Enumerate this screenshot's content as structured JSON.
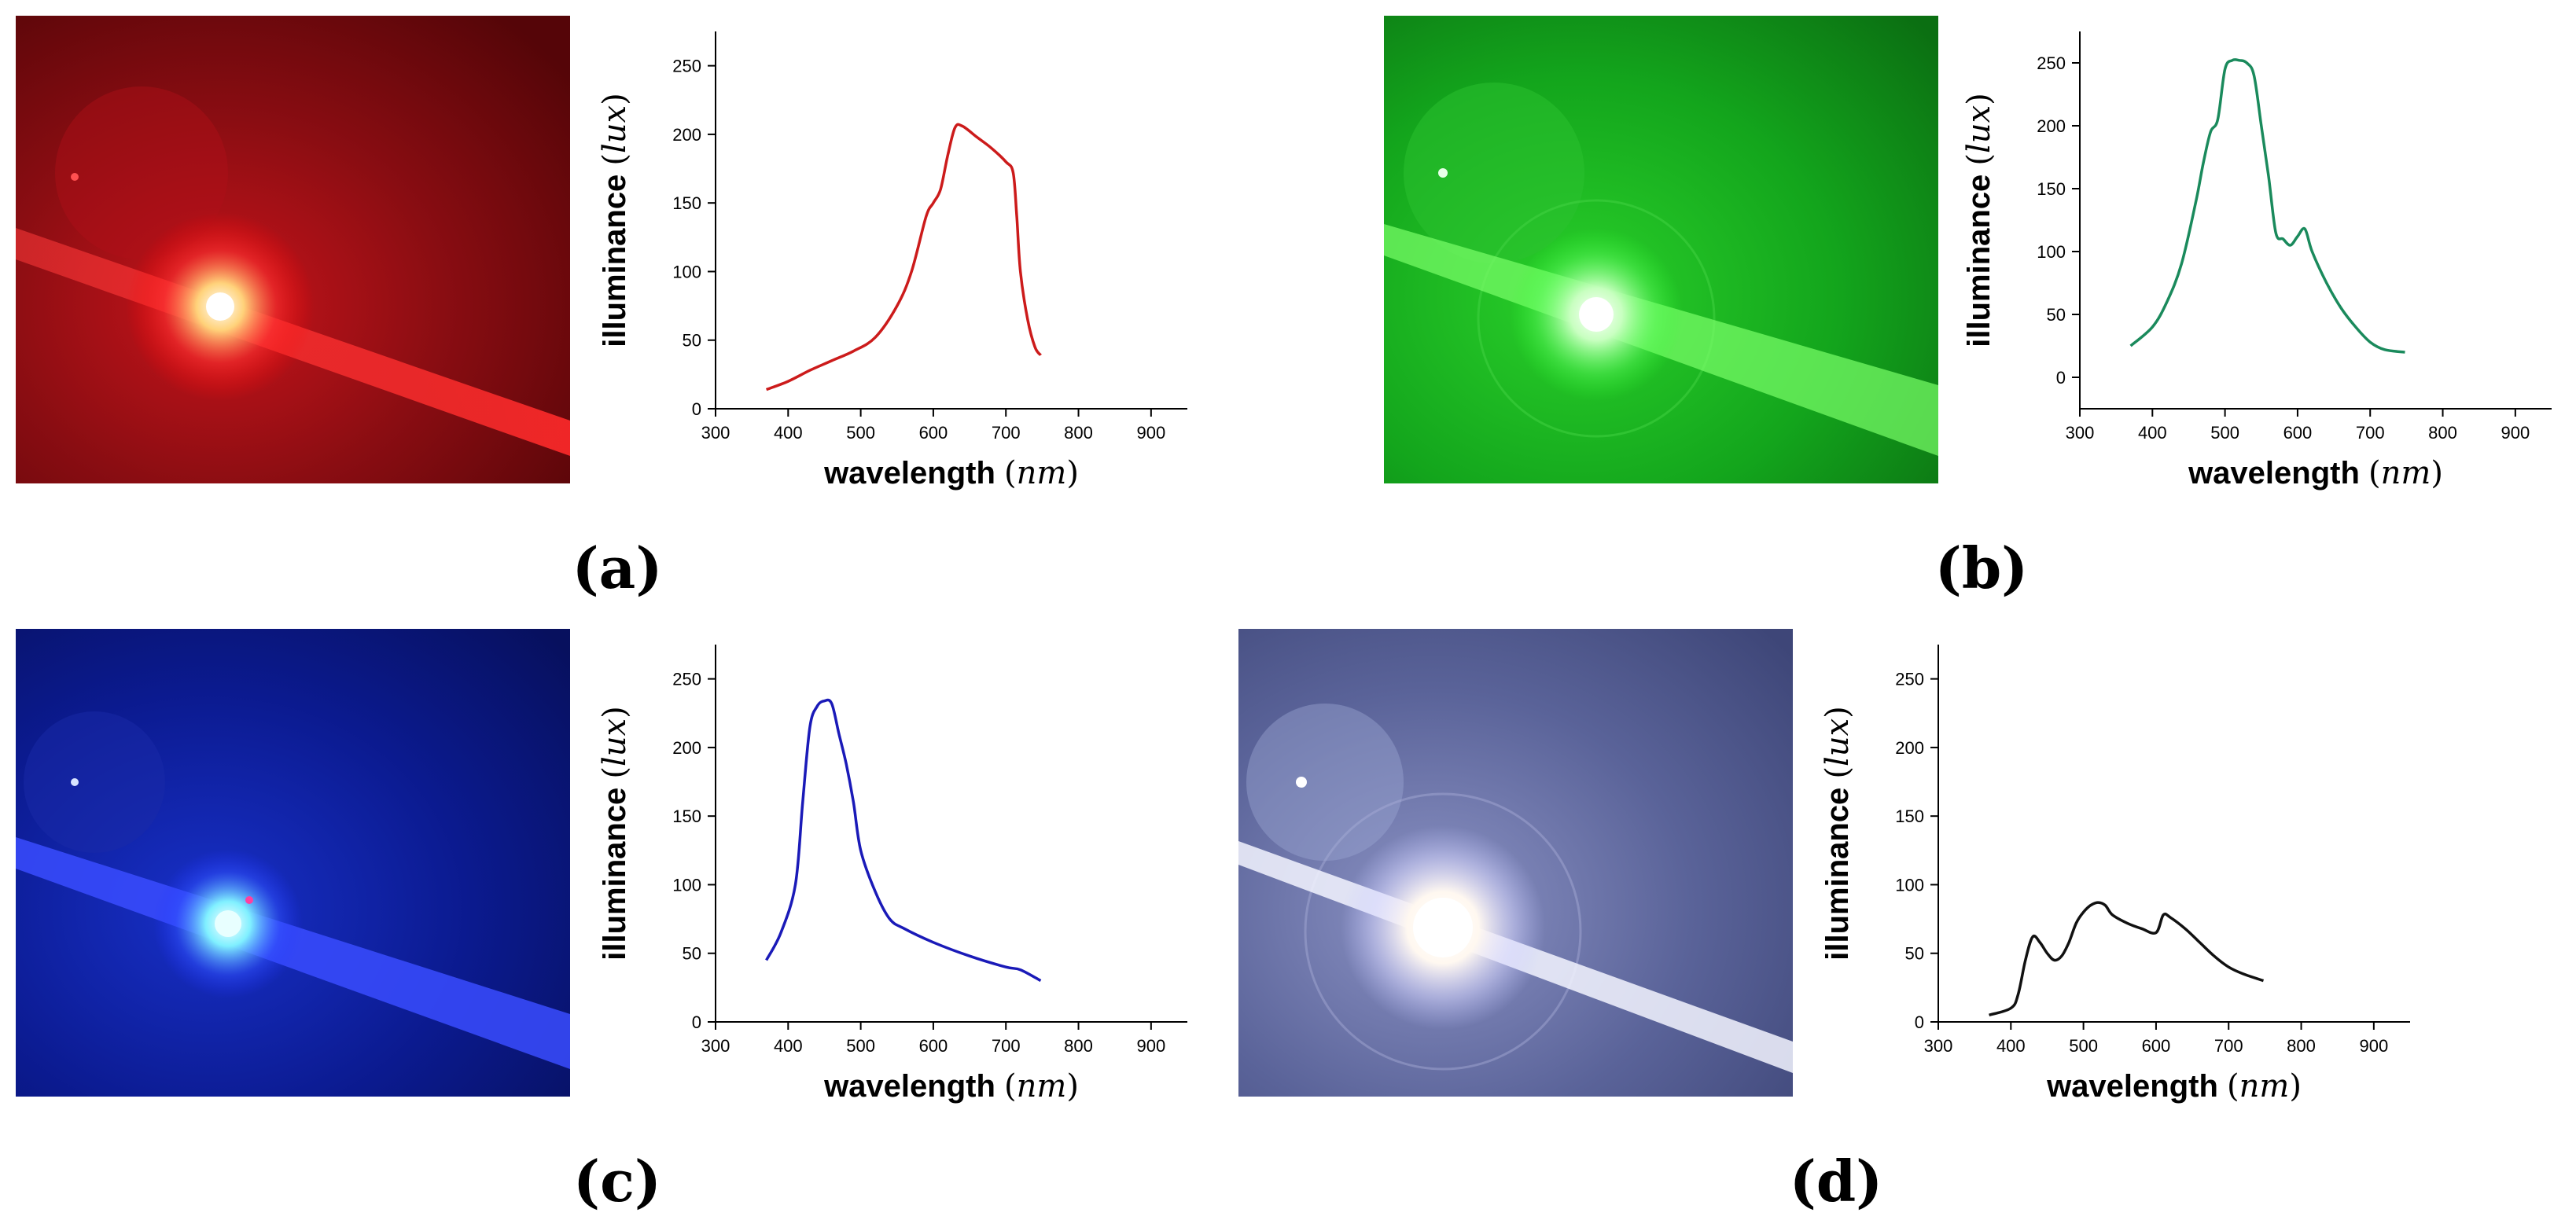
{
  "figure": {
    "panels": [
      {
        "id": "a",
        "caption": "(a)",
        "photo": {
          "theme": "red",
          "background": "#8a0d12",
          "beam": "#ff2a2a"
        }
      },
      {
        "id": "b",
        "caption": "(b)",
        "photo": {
          "theme": "green",
          "background": "#13a51c",
          "beam": "#73ff6a"
        }
      },
      {
        "id": "c",
        "caption": "(c)",
        "photo": {
          "theme": "blue",
          "background": "#0b1a8f",
          "beam": "#3246ff"
        }
      },
      {
        "id": "d",
        "caption": "(d)",
        "photo": {
          "theme": "white",
          "background": "#4c568d",
          "beam": "#f3f4ff"
        }
      }
    ]
  },
  "chart_data": [
    {
      "type": "line",
      "panel": "a",
      "xlabel_main": "wavelength",
      "xlabel_unit": "nm",
      "ylabel_main": "illuminance",
      "ylabel_unit": "lux",
      "xlim": [
        300,
        950
      ],
      "ylim": [
        0,
        275
      ],
      "x_ticks": [
        300,
        400,
        500,
        600,
        700,
        800,
        900
      ],
      "y_ticks": [
        0,
        50,
        100,
        150,
        200,
        250
      ],
      "color": "#cc1b1b",
      "series": [
        {
          "x": [
            370,
            400,
            430,
            460,
            490,
            520,
            550,
            570,
            590,
            600,
            610,
            620,
            630,
            640,
            660,
            680,
            700,
            710,
            715,
            720,
            730,
            740,
            748
          ],
          "y": [
            14,
            20,
            28,
            35,
            42,
            52,
            75,
            100,
            140,
            150,
            160,
            185,
            205,
            206,
            198,
            190,
            180,
            172,
            140,
            100,
            65,
            45,
            39
          ]
        }
      ]
    },
    {
      "type": "line",
      "panel": "b",
      "xlabel_main": "wavelength",
      "xlabel_unit": "nm",
      "ylabel_main": "illuminance",
      "ylabel_unit": "lux",
      "xlim": [
        300,
        950
      ],
      "ylim": [
        -25,
        275
      ],
      "x_ticks": [
        300,
        400,
        500,
        600,
        700,
        800,
        900
      ],
      "y_ticks": [
        0,
        50,
        100,
        150,
        200,
        250
      ],
      "color": "#1a8a5c",
      "series": [
        {
          "x": [
            370,
            400,
            420,
            440,
            460,
            470,
            480,
            490,
            500,
            510,
            520,
            530,
            540,
            550,
            560,
            570,
            580,
            590,
            600,
            610,
            620,
            640,
            660,
            680,
            700,
            720,
            748
          ],
          "y": [
            25,
            40,
            60,
            90,
            140,
            170,
            195,
            205,
            245,
            252,
            252,
            250,
            240,
            200,
            160,
            115,
            110,
            105,
            112,
            118,
            100,
            75,
            55,
            40,
            28,
            22,
            20
          ]
        }
      ]
    },
    {
      "type": "line",
      "panel": "c",
      "xlabel_main": "wavelength",
      "xlabel_unit": "nm",
      "ylabel_main": "illuminance",
      "ylabel_unit": "lux",
      "xlim": [
        300,
        950
      ],
      "ylim": [
        0,
        275
      ],
      "x_ticks": [
        300,
        400,
        500,
        600,
        700,
        800,
        900
      ],
      "y_ticks": [
        0,
        50,
        100,
        150,
        200,
        250
      ],
      "color": "#1a1ab8",
      "series": [
        {
          "x": [
            370,
            390,
            410,
            420,
            430,
            440,
            450,
            460,
            470,
            480,
            490,
            500,
            520,
            540,
            560,
            600,
            650,
            700,
            720,
            748
          ],
          "y": [
            45,
            65,
            100,
            160,
            215,
            230,
            234,
            232,
            210,
            188,
            160,
            125,
            95,
            75,
            68,
            58,
            48,
            40,
            38,
            30
          ]
        }
      ]
    },
    {
      "type": "line",
      "panel": "d",
      "xlabel_main": "wavelength",
      "xlabel_unit": "nm",
      "ylabel_main": "illuminance",
      "ylabel_unit": "lux",
      "xlim": [
        300,
        950
      ],
      "ylim": [
        0,
        275
      ],
      "x_ticks": [
        300,
        400,
        500,
        600,
        700,
        800,
        900
      ],
      "y_ticks": [
        0,
        50,
        100,
        150,
        200,
        250
      ],
      "color": "#111111",
      "series": [
        {
          "x": [
            370,
            400,
            410,
            420,
            430,
            440,
            450,
            460,
            470,
            480,
            490,
            500,
            510,
            520,
            530,
            540,
            560,
            580,
            600,
            610,
            620,
            640,
            660,
            680,
            700,
            720,
            748
          ],
          "y": [
            5,
            10,
            20,
            45,
            62,
            58,
            50,
            45,
            48,
            58,
            72,
            80,
            85,
            87,
            85,
            78,
            72,
            68,
            65,
            78,
            76,
            68,
            58,
            48,
            40,
            35,
            30
          ]
        }
      ]
    }
  ]
}
